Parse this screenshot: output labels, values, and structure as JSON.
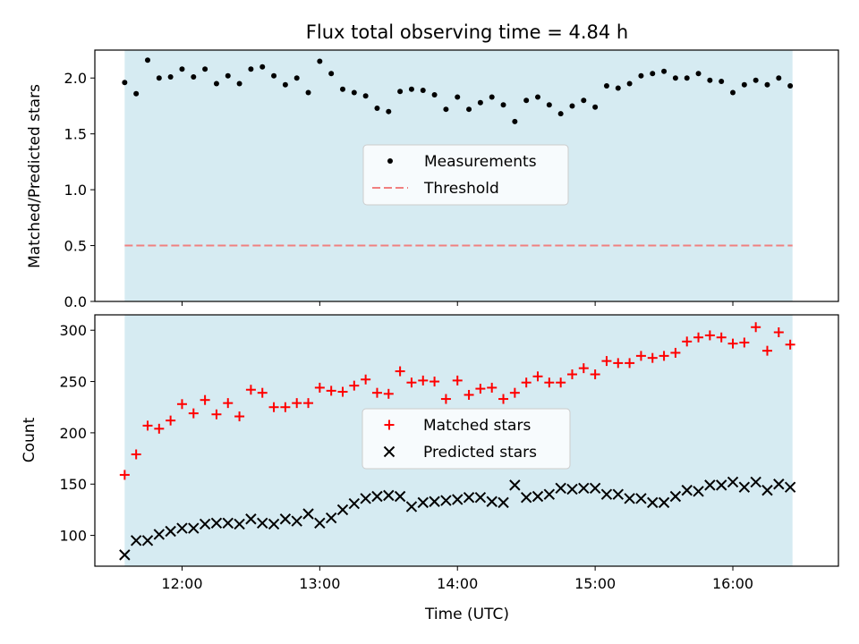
{
  "title": "Flux total observing time = 4.84 h",
  "colors": {
    "span": "#add8e6",
    "measurement": "#000000",
    "threshold": "#f08080",
    "matched": "#ff0000",
    "predicted": "#000000"
  },
  "chart_data": [
    {
      "type": "scatter",
      "panel": "top",
      "xlabel": "",
      "ylabel": "Matched/Predicted stars",
      "xlim": [
        "11:22",
        "16:46"
      ],
      "ylim": [
        0,
        2.25
      ],
      "yticks": [
        "0.0",
        "0.5",
        "1.0",
        "1.5",
        "2.0"
      ],
      "observing_span": [
        "11:35",
        "16:26"
      ],
      "legend_placement": "center",
      "threshold": {
        "name": "Threshold",
        "value": 0.5
      },
      "series": [
        {
          "name": "Measurements",
          "marker": "dot",
          "x": [
            "11:35",
            "11:40",
            "11:45",
            "11:50",
            "11:55",
            "12:00",
            "12:05",
            "12:10",
            "12:15",
            "12:20",
            "12:25",
            "12:30",
            "12:35",
            "12:40",
            "12:45",
            "12:50",
            "12:55",
            "13:00",
            "13:05",
            "13:10",
            "13:15",
            "13:20",
            "13:25",
            "13:30",
            "13:35",
            "13:40",
            "13:45",
            "13:50",
            "13:55",
            "14:00",
            "14:05",
            "14:10",
            "14:15",
            "14:20",
            "14:25",
            "14:30",
            "14:35",
            "14:40",
            "14:45",
            "14:50",
            "14:55",
            "15:00",
            "15:05",
            "15:10",
            "15:15",
            "15:20",
            "15:25",
            "15:30",
            "15:35",
            "15:40",
            "15:45",
            "15:50",
            "15:55",
            "16:00",
            "16:05",
            "16:10",
            "16:15",
            "16:20",
            "16:25"
          ],
          "y": [
            1.96,
            1.86,
            2.16,
            2.0,
            2.01,
            2.08,
            2.01,
            2.08,
            1.95,
            2.02,
            1.95,
            2.08,
            2.1,
            2.02,
            1.94,
            2.0,
            1.87,
            2.15,
            2.04,
            1.9,
            1.87,
            1.84,
            1.73,
            1.7,
            1.88,
            1.9,
            1.89,
            1.85,
            1.72,
            1.83,
            1.72,
            1.78,
            1.83,
            1.76,
            1.61,
            1.8,
            1.83,
            1.76,
            1.68,
            1.75,
            1.8,
            1.74,
            1.93,
            1.91,
            1.95,
            2.02,
            2.04,
            2.06,
            2.0,
            2.0,
            2.04,
            1.98,
            1.97,
            1.87,
            1.94,
            1.98,
            1.94,
            2.0,
            1.93
          ]
        }
      ]
    },
    {
      "type": "scatter",
      "panel": "bottom",
      "xlabel": "Time (UTC)",
      "ylabel": "Count",
      "xlim": [
        "11:22",
        "16:46"
      ],
      "ylim": [
        70,
        315
      ],
      "xticks": [
        "12:00",
        "13:00",
        "14:00",
        "15:00",
        "16:00"
      ],
      "yticks": [
        "100",
        "150",
        "200",
        "250",
        "300"
      ],
      "observing_span": [
        "11:35",
        "16:26"
      ],
      "legend_placement": "center",
      "series": [
        {
          "name": "Matched stars",
          "marker": "plus",
          "x": [
            "11:35",
            "11:40",
            "11:45",
            "11:50",
            "11:55",
            "12:00",
            "12:05",
            "12:10",
            "12:15",
            "12:20",
            "12:25",
            "12:30",
            "12:35",
            "12:40",
            "12:45",
            "12:50",
            "12:55",
            "13:00",
            "13:05",
            "13:10",
            "13:15",
            "13:20",
            "13:25",
            "13:30",
            "13:35",
            "13:40",
            "13:45",
            "13:50",
            "13:55",
            "14:00",
            "14:05",
            "14:10",
            "14:15",
            "14:20",
            "14:25",
            "14:30",
            "14:35",
            "14:40",
            "14:45",
            "14:50",
            "14:55",
            "15:00",
            "15:05",
            "15:10",
            "15:15",
            "15:20",
            "15:25",
            "15:30",
            "15:35",
            "15:40",
            "15:45",
            "15:50",
            "15:55",
            "16:00",
            "16:05",
            "16:10",
            "16:15",
            "16:20",
            "16:25"
          ],
          "y": [
            159,
            179,
            207,
            204,
            212,
            228,
            219,
            232,
            218,
            229,
            216,
            242,
            239,
            225,
            225,
            229,
            229,
            244,
            241,
            240,
            246,
            252,
            239,
            238,
            260,
            249,
            251,
            250,
            233,
            251,
            237,
            243,
            244,
            233,
            239,
            249,
            255,
            249,
            249,
            257,
            263,
            257,
            270,
            268,
            268,
            275,
            273,
            275,
            278,
            289,
            293,
            295,
            293,
            287,
            288,
            303,
            280,
            298,
            286
          ]
        },
        {
          "name": "Predicted stars",
          "marker": "x",
          "x": [
            "11:35",
            "11:40",
            "11:45",
            "11:50",
            "11:55",
            "12:00",
            "12:05",
            "12:10",
            "12:15",
            "12:20",
            "12:25",
            "12:30",
            "12:35",
            "12:40",
            "12:45",
            "12:50",
            "12:55",
            "13:00",
            "13:05",
            "13:10",
            "13:15",
            "13:20",
            "13:25",
            "13:30",
            "13:35",
            "13:40",
            "13:45",
            "13:50",
            "13:55",
            "14:00",
            "14:05",
            "14:10",
            "14:15",
            "14:20",
            "14:25",
            "14:30",
            "14:35",
            "14:40",
            "14:45",
            "14:50",
            "14:55",
            "15:00",
            "15:05",
            "15:10",
            "15:15",
            "15:20",
            "15:25",
            "15:30",
            "15:35",
            "15:40",
            "15:45",
            "15:50",
            "15:55",
            "16:00",
            "16:05",
            "16:10",
            "16:15",
            "16:20",
            "16:25"
          ],
          "y": [
            81,
            95,
            95,
            101,
            104,
            107,
            107,
            111,
            112,
            112,
            111,
            116,
            112,
            111,
            116,
            114,
            121,
            112,
            117,
            125,
            131,
            136,
            138,
            139,
            138,
            128,
            132,
            133,
            134,
            135,
            137,
            137,
            133,
            132,
            149,
            137,
            138,
            140,
            146,
            145,
            146,
            146,
            140,
            140,
            136,
            136,
            132,
            132,
            138,
            144,
            143,
            149,
            149,
            152,
            147,
            152,
            144,
            150,
            147
          ]
        }
      ]
    }
  ]
}
